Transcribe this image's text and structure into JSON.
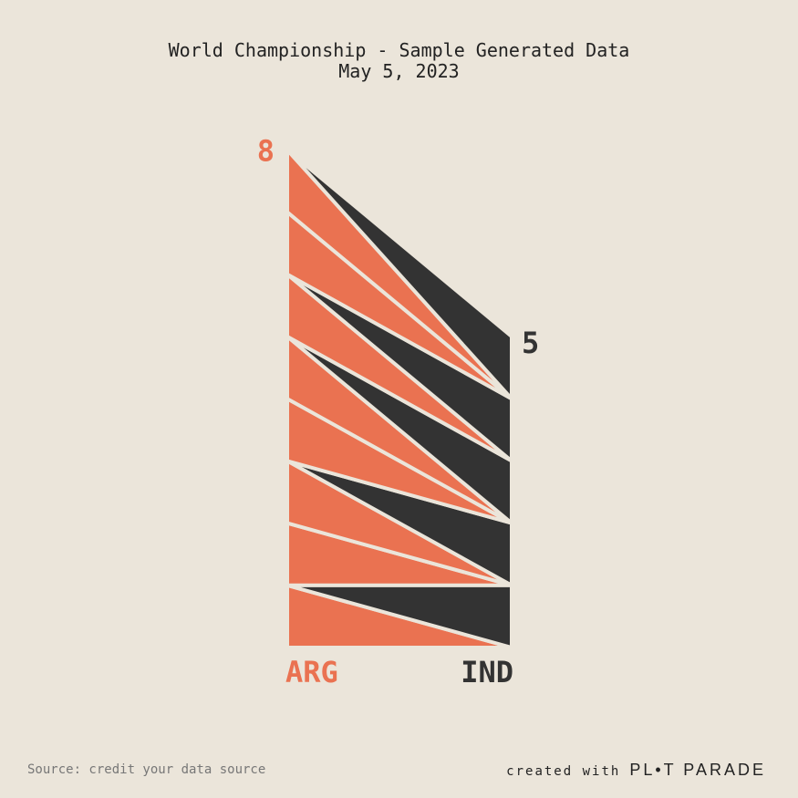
{
  "header": {
    "title": "World Championship - Sample Generated Data",
    "subtitle": "May 5, 2023"
  },
  "chart_data": {
    "type": "area",
    "teams": [
      {
        "code": "ARG",
        "score": 8,
        "color": "#ea7251"
      },
      {
        "code": "IND",
        "score": 5,
        "color": "#333333"
      }
    ],
    "score_sequence": [
      {
        "goal": 1,
        "team": "ARG",
        "arg": 1,
        "ind": 0
      },
      {
        "goal": 2,
        "team": "IND",
        "arg": 1,
        "ind": 1
      },
      {
        "goal": 3,
        "team": "ARG",
        "arg": 2,
        "ind": 1
      },
      {
        "goal": 4,
        "team": "ARG",
        "arg": 3,
        "ind": 1
      },
      {
        "goal": 5,
        "team": "IND",
        "arg": 3,
        "ind": 2
      },
      {
        "goal": 6,
        "team": "ARG",
        "arg": 4,
        "ind": 2
      },
      {
        "goal": 7,
        "team": "ARG",
        "arg": 5,
        "ind": 2
      },
      {
        "goal": 8,
        "team": "IND",
        "arg": 5,
        "ind": 3
      },
      {
        "goal": 9,
        "team": "ARG",
        "arg": 6,
        "ind": 3
      },
      {
        "goal": 10,
        "team": "IND",
        "arg": 6,
        "ind": 4
      },
      {
        "goal": 11,
        "team": "ARG",
        "arg": 7,
        "ind": 4
      },
      {
        "goal": 12,
        "team": "ARG",
        "arg": 8,
        "ind": 4
      },
      {
        "goal": 13,
        "team": "IND",
        "arg": 8,
        "ind": 5
      }
    ]
  },
  "footer": {
    "source": "Source: credit your data source",
    "created_with": "created with",
    "brand": "PL•T PARADE"
  }
}
